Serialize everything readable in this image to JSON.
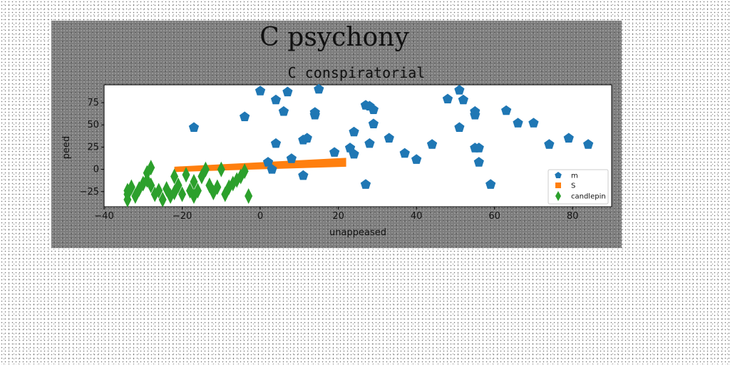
{
  "figure": {
    "suptitle": "C psychony"
  },
  "chart_data": {
    "type": "scatter",
    "title": "C conspiratorial",
    "xlabel": "unappeased",
    "ylabel": "peed",
    "xlim": [
      -40,
      90
    ],
    "ylim": [
      -42,
      95
    ],
    "xticks": [
      "−40",
      "−20",
      "0",
      "20",
      "40",
      "60",
      "80"
    ],
    "xtick_values": [
      -40,
      -20,
      0,
      20,
      40,
      60,
      80
    ],
    "yticks": [
      "−25",
      "0",
      "25",
      "50",
      "75"
    ],
    "ytick_values": [
      -25,
      0,
      25,
      50,
      75
    ],
    "grid": false,
    "legend_position": "lower-right",
    "series": [
      {
        "name": "m",
        "marker": "pentagon",
        "color": "#1f77b4",
        "points": [
          [
            -17,
            47
          ],
          [
            -4,
            59
          ],
          [
            0,
            88
          ],
          [
            2,
            8
          ],
          [
            4,
            29
          ],
          [
            4,
            78
          ],
          [
            6,
            65
          ],
          [
            7,
            87
          ],
          [
            8,
            12
          ],
          [
            11,
            33
          ],
          [
            12,
            35
          ],
          [
            14,
            61
          ],
          [
            14,
            64
          ],
          [
            15,
            90
          ],
          [
            19,
            19
          ],
          [
            23,
            24
          ],
          [
            24,
            17
          ],
          [
            24,
            42
          ],
          [
            27,
            -17
          ],
          [
            27,
            72
          ],
          [
            28,
            29
          ],
          [
            28,
            71
          ],
          [
            29,
            67
          ],
          [
            29,
            51
          ],
          [
            33,
            35
          ],
          [
            37,
            18
          ],
          [
            40,
            11
          ],
          [
            44,
            28
          ],
          [
            48,
            79
          ],
          [
            51,
            89
          ],
          [
            51,
            47
          ],
          [
            52,
            78
          ],
          [
            55,
            65
          ],
          [
            55,
            61
          ],
          [
            55,
            24
          ],
          [
            56,
            24
          ],
          [
            56,
            8
          ],
          [
            59,
            -17
          ],
          [
            63,
            66
          ],
          [
            66,
            52
          ],
          [
            70,
            52
          ],
          [
            74,
            28
          ],
          [
            79,
            35
          ],
          [
            84,
            28
          ],
          [
            3,
            0
          ],
          [
            11,
            -7
          ]
        ]
      },
      {
        "name": "S",
        "marker": "square",
        "color": "#ff7f0e",
        "band": {
          "x_start": -22,
          "x_end": 22,
          "upper_start": 3,
          "upper_end": 13,
          "lower_start": -3,
          "lower_end": 3
        }
      },
      {
        "name": "candlepin",
        "marker": "thin-diamond",
        "color": "#2ca02c",
        "points": [
          [
            -34,
            -28
          ],
          [
            -34,
            -24
          ],
          [
            -34,
            -34
          ],
          [
            -33,
            -20
          ],
          [
            -32,
            -30
          ],
          [
            -31,
            -22
          ],
          [
            -30,
            -16
          ],
          [
            -29,
            -12
          ],
          [
            -29,
            -4
          ],
          [
            -28,
            -18
          ],
          [
            -28,
            2
          ],
          [
            -27,
            -28
          ],
          [
            -26,
            -24
          ],
          [
            -25,
            -34
          ],
          [
            -24,
            -22
          ],
          [
            -23,
            -30
          ],
          [
            -22,
            -8
          ],
          [
            -22,
            -26
          ],
          [
            -21,
            -18
          ],
          [
            -20,
            -28
          ],
          [
            -19,
            -6
          ],
          [
            -18,
            -24
          ],
          [
            -17,
            -30
          ],
          [
            -17,
            -14
          ],
          [
            -16,
            -24
          ],
          [
            -15,
            -8
          ],
          [
            -14,
            0
          ],
          [
            -13,
            -18
          ],
          [
            -12,
            -26
          ],
          [
            -11,
            -20
          ],
          [
            -10,
            0
          ],
          [
            -9,
            -28
          ],
          [
            -8,
            -20
          ],
          [
            -7,
            -16
          ],
          [
            -6,
            -12
          ],
          [
            -5,
            -8
          ],
          [
            -4,
            -2
          ],
          [
            -3,
            -30
          ]
        ]
      }
    ]
  }
}
